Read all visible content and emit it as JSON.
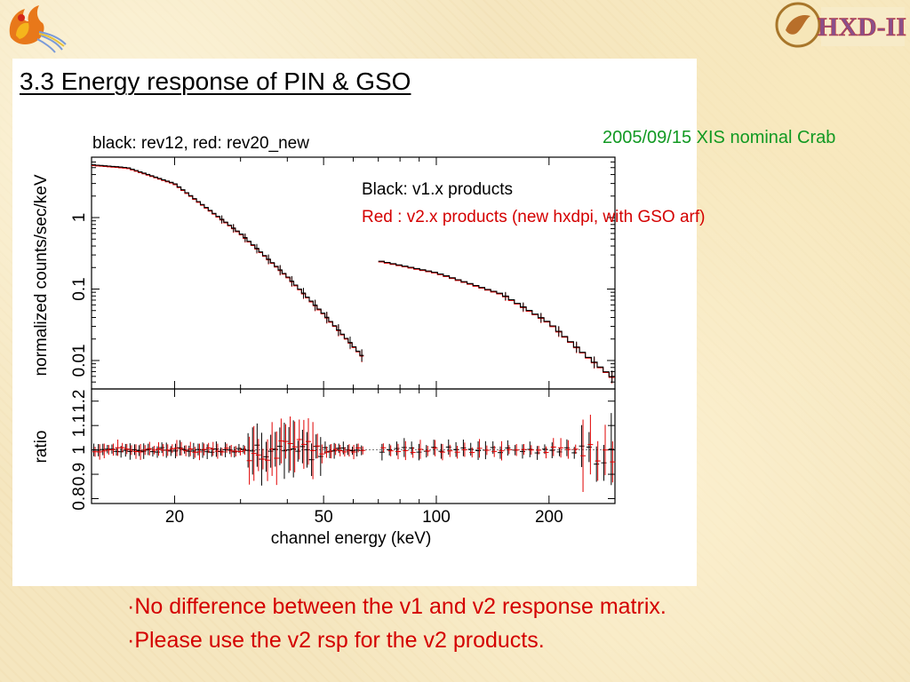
{
  "slide": {
    "title": "3.3 Energy response of PIN & GSO",
    "observation_note": "2005/09/15 XIS nominal Crab",
    "legend_line1": "Black: v1.x products",
    "legend_line2": "Red : v2.x  products (new hxdpi, with GSO arf)",
    "bullets": [
      "·No difference between the v1 and v2 response matrix.",
      "·Please use the v2 rsp for the v2 products."
    ],
    "logo_left_icon": "phoenix-icon",
    "logo_right_icon": "astro-e2-hxd-logo-icon",
    "logo_right_text": "HXD-II"
  },
  "chart_data": {
    "type": "line",
    "title": "black: rev12, red: rev20_new",
    "xlabel": "channel energy (keV)",
    "ylabel_top": "normalized counts/sec/keV",
    "ylabel_bottom": "ratio",
    "x_scale": "log",
    "y_scale_top": "log",
    "xlim": [
      12,
      300
    ],
    "ylim_top": [
      0.004,
      7
    ],
    "ylim_bottom": [
      0.78,
      1.25
    ],
    "x_ticks": [
      {
        "value": 20,
        "label": "20"
      },
      {
        "value": 50,
        "label": "50"
      },
      {
        "value": 100,
        "label": "100"
      },
      {
        "value": 200,
        "label": "200"
      }
    ],
    "y_ticks_top": [
      {
        "value": 1,
        "label": "1"
      },
      {
        "value": 0.1,
        "label": "0.1"
      },
      {
        "value": 0.01,
        "label": "0.01"
      }
    ],
    "y_ticks_bottom": [
      {
        "value": 0.8,
        "label": "0.8"
      },
      {
        "value": 0.9,
        "label": "0.9"
      },
      {
        "value": 1,
        "label": "1"
      },
      {
        "value": 1.1,
        "label": "1.1"
      },
      {
        "value": 1.2,
        "label": "1.2"
      }
    ],
    "series_colors": {
      "rev12": "#000000",
      "rev20_new": "#e00000"
    },
    "pin_spectrum": {
      "energy": [
        12,
        15,
        20,
        30,
        40,
        50,
        60,
        64
      ],
      "counts": [
        5.5,
        5.0,
        3.0,
        0.6,
        0.15,
        0.045,
        0.016,
        0.011
      ]
    },
    "gso_spectrum": {
      "energy": [
        70,
        100,
        150,
        200,
        250,
        300
      ],
      "counts": [
        0.25,
        0.17,
        0.085,
        0.034,
        0.012,
        0.0055
      ]
    }
  }
}
